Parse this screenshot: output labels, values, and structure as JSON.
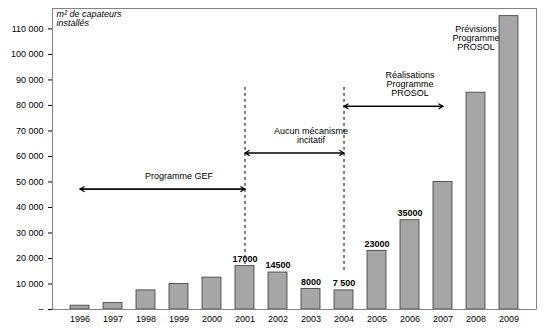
{
  "chart_data": {
    "type": "bar",
    "y_label": "m² de capateurs installés",
    "categories": [
      "1996",
      "1997",
      "1998",
      "1999",
      "2000",
      "2001",
      "2002",
      "2003",
      "2004",
      "2005",
      "2006",
      "2007",
      "2008",
      "2009"
    ],
    "values": [
      1500,
      2500,
      7500,
      10000,
      12500,
      17000,
      14500,
      8000,
      7500,
      23000,
      35000,
      50000,
      85000,
      115000
    ],
    "value_labels": [
      null,
      null,
      null,
      null,
      null,
      "17000",
      "14500",
      "8000",
      "7 500",
      "23000",
      "35000",
      null,
      null,
      null
    ],
    "data_labels": true,
    "color": "#a6a6a6",
    "ylim": [
      0,
      118000
    ],
    "yticks": [
      {
        "value": 0,
        "label": "–"
      },
      {
        "value": 10000,
        "label": "10 000"
      },
      {
        "value": 20000,
        "label": "20 000"
      },
      {
        "value": 30000,
        "label": "30 000"
      },
      {
        "value": 40000,
        "label": "40 000"
      },
      {
        "value": 50000,
        "label": "50 000"
      },
      {
        "value": 60000,
        "label": "60 000"
      },
      {
        "value": 70000,
        "label": "70 000"
      },
      {
        "value": 80000,
        "label": "80 000"
      },
      {
        "value": 90000,
        "label": "90 000"
      },
      {
        "value": 100000,
        "label": "100 000"
      },
      {
        "value": 110000,
        "label": "110 000"
      }
    ],
    "grid": false,
    "dividers": [
      "2001",
      "2004"
    ],
    "annotations": [
      {
        "text": "Programme GEF",
        "from": "1996",
        "to": "2001"
      },
      {
        "text": "Aucun mécanisme incitatif",
        "from": "2001",
        "to": "2004"
      },
      {
        "text": "Réalisations Programme PROSOL",
        "from": "2004",
        "to": "2007"
      },
      {
        "text": "Prévisions Programme PROSOL",
        "at": "2008"
      }
    ]
  }
}
